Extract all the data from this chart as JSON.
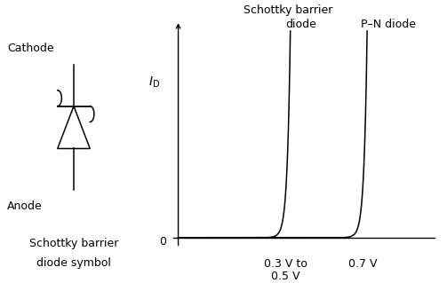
{
  "background_color": "#ffffff",
  "schottky_label_line1": "Schottky barrier",
  "schottky_label_line2": "diode",
  "pn_label": "P–N diode",
  "ylabel": "$I_\\mathrm{D}$",
  "zero_label": "0",
  "xvoltage_schottky": "0.3 V to\n0.5 V",
  "xvoltage_pn": "0.7 V",
  "symbol_cathode": "Cathode",
  "symbol_anode": "Anode",
  "symbol_caption_line1": "Schottky barrier",
  "symbol_caption_line2": "diode symbol",
  "text_color": "#000000",
  "font_size": 9,
  "fig_width": 5.03,
  "fig_height": 3.19,
  "dpi": 100,
  "vth_s": 0.4,
  "vth_pn": 0.7
}
